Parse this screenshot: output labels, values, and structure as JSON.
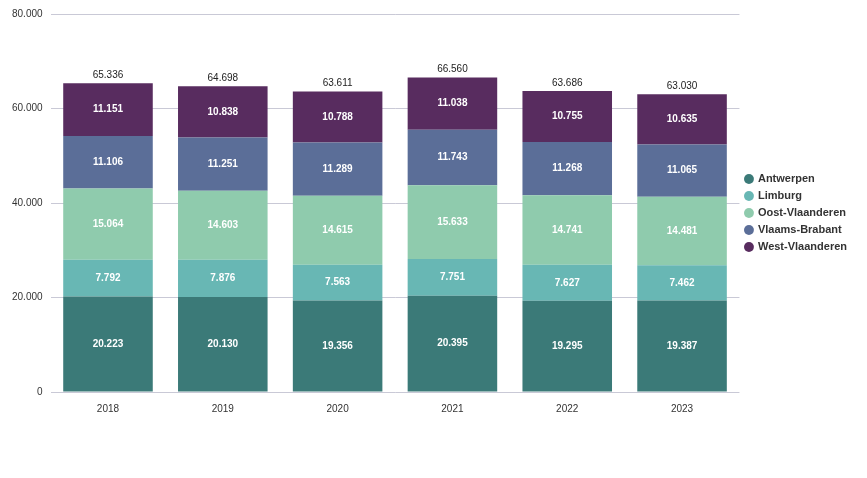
{
  "chart_data": {
    "type": "bar",
    "stacked": true,
    "data_labels": true,
    "grid": true,
    "legend": "right",
    "categories": [
      "2018",
      "2019",
      "2020",
      "2021",
      "2022",
      "2023"
    ],
    "ylim": [
      0,
      80000
    ],
    "yticks": [
      0,
      {
        "value": 20000,
        "label": "20.000"
      },
      {
        "value": 40000,
        "label": "40.000"
      },
      {
        "value": 60000,
        "label": "60.000"
      },
      {
        "value": 80000,
        "label": "80.000"
      }
    ],
    "series": [
      {
        "name": "Antwerpen",
        "color": "#3b7a78",
        "values": [
          20223,
          20130,
          19356,
          20395,
          19295,
          19387
        ],
        "value_labels": [
          "20.223",
          "20.130",
          "19.356",
          "20.395",
          "19.295",
          "19.387"
        ]
      },
      {
        "name": "Limburg",
        "color": "#68b7b4",
        "values": [
          7792,
          7876,
          7563,
          7751,
          7627,
          7462
        ],
        "value_labels": [
          "7.792",
          "7.876",
          "7.563",
          "7.751",
          "7.627",
          "7.462"
        ]
      },
      {
        "name": "Oost-Vlaanderen",
        "color": "#8fcbad",
        "values": [
          15064,
          14603,
          14615,
          15633,
          14741,
          14481
        ],
        "value_labels": [
          "15.064",
          "14.603",
          "14.615",
          "15.633",
          "14.741",
          "14.481"
        ]
      },
      {
        "name": "Vlaams-Brabant",
        "color": "#5b6e98",
        "values": [
          11106,
          11251,
          11289,
          11743,
          11268,
          11065
        ],
        "value_labels": [
          "11.106",
          "11.251",
          "11.289",
          "11.743",
          "11.268",
          "11.065"
        ]
      },
      {
        "name": "West-Vlaanderen",
        "color": "#582c5f",
        "values": [
          11151,
          10838,
          10788,
          11038,
          10755,
          10635
        ],
        "value_labels": [
          "11.151",
          "10.838",
          "10.788",
          "11.038",
          "10.755",
          "10.635"
        ]
      }
    ],
    "totals": [
      65336,
      64698,
      63611,
      66560,
      63686,
      63030
    ],
    "total_labels": [
      "65.336",
      "64.698",
      "63.611",
      "66.560",
      "63.686",
      "63.030"
    ]
  }
}
